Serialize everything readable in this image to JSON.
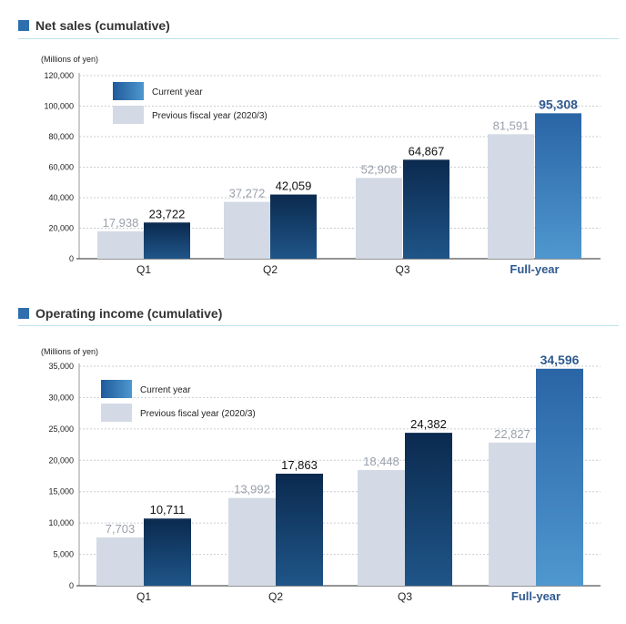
{
  "chart_data": [
    {
      "type": "bar",
      "title": "Net sales (cumulative)",
      "unit_label": "(Millions of yen)",
      "categories": [
        "Q1",
        "Q2",
        "Q3",
        "Full-year"
      ],
      "highlight_category": "Full-year",
      "series": [
        {
          "name": "Previous fiscal year (2020/3)",
          "values": [
            17938,
            37272,
            52908,
            81591
          ],
          "labels": [
            "17,938",
            "37,272",
            "52,908",
            "81,591"
          ],
          "color": "#d3dae6"
        },
        {
          "name": "Current year",
          "values": [
            23722,
            42059,
            64867,
            95308
          ],
          "labels": [
            "23,722",
            "42,059",
            "64,867",
            "95,308"
          ],
          "color": "#0d2d52"
        }
      ],
      "ylim": [
        0,
        120000
      ],
      "yticks": [
        "0",
        "20,000",
        "40,000",
        "60,000",
        "80,000",
        "100,000",
        "120,000"
      ],
      "grid": true,
      "legend_position": "top-left"
    },
    {
      "type": "bar",
      "title": "Operating income (cumulative)",
      "unit_label": "(Millions of yen)",
      "categories": [
        "Q1",
        "Q2",
        "Q3",
        "Full-year"
      ],
      "highlight_category": "Full-year",
      "series": [
        {
          "name": "Previous fiscal year (2020/3)",
          "values": [
            7703,
            13992,
            18448,
            22827
          ],
          "labels": [
            "7,703",
            "13,992",
            "18,448",
            "22,827"
          ],
          "color": "#d3dae6"
        },
        {
          "name": "Current year",
          "values": [
            10711,
            17863,
            24382,
            34596
          ],
          "labels": [
            "10,711",
            "17,863",
            "24,382",
            "34,596"
          ],
          "color": "#0d2d52"
        }
      ],
      "ylim": [
        0,
        35000
      ],
      "yticks": [
        "0",
        "5,000",
        "10,000",
        "15,000",
        "20,000",
        "25,000",
        "30,000",
        "35,000"
      ],
      "grid": true,
      "legend_position": "top-left"
    }
  ]
}
